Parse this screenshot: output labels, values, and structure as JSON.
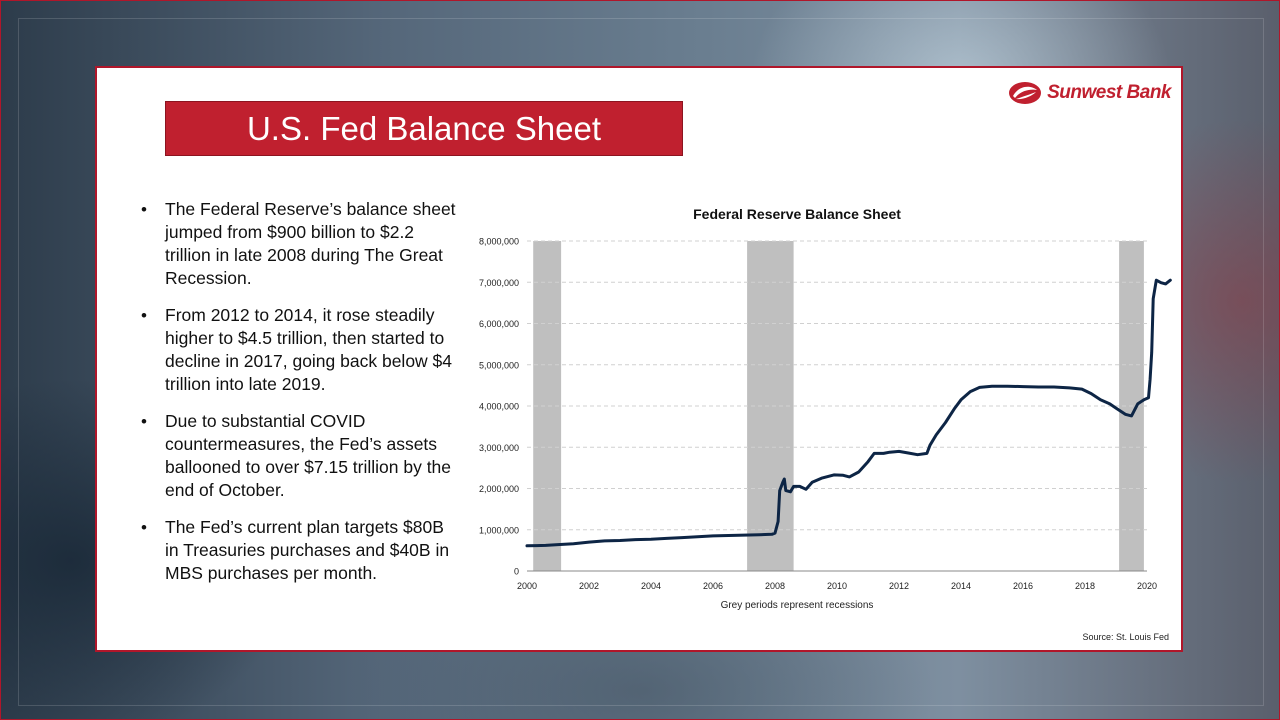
{
  "slide": {
    "title": "U.S. Fed Balance Sheet",
    "logo_text": "Sunwest Bank",
    "bullets": [
      "The Federal Reserve’s  balance sheet jumped from $900 billion to $2.2 trillion in late 2008 during The Great Recession.",
      "From 2012 to 2014, it rose steadily higher to $4.5 trillion, then started to decline in 2017, going back below $4 trillion into late 2019.",
      "Due to substantial COVID countermeasures,  the Fed’s assets ballooned to over $7.15 trillion by the end of October.",
      "The Fed’s current plan targets $80B in Treasuries purchases and $40B in MBS purchases per month."
    ],
    "source": "Source: St. Louis Fed"
  },
  "colors": {
    "accent_red": "#c0202f",
    "line": "#0d2545",
    "recession": "#bfbfbf"
  },
  "chart_data": {
    "type": "line",
    "title": "Federal Reserve Balance Sheet",
    "xlabel": "Grey periods represent recessions",
    "ylabel": "",
    "xlim": [
      2000,
      2020
    ],
    "ylim": [
      0,
      8000000
    ],
    "grid": true,
    "x_ticks": [
      "2000",
      "2002",
      "2004",
      "2006",
      "2008",
      "2010",
      "2012",
      "2014",
      "2016",
      "2018",
      "2020"
    ],
    "y_ticks": [
      "0",
      "1,000,000",
      "2,000,000",
      "3,000,000",
      "4,000,000",
      "5,000,000",
      "6,000,000",
      "7,000,000",
      "8,000,000"
    ],
    "recessions": [
      [
        2000.2,
        2001.1
      ],
      [
        2007.1,
        2008.6
      ],
      [
        2019.1,
        2019.9
      ]
    ],
    "series": [
      {
        "points": [
          [
            2000.0,
            610000
          ],
          [
            2000.3,
            615000
          ],
          [
            2000.6,
            620000
          ],
          [
            2001.0,
            640000
          ],
          [
            2001.5,
            660000
          ],
          [
            2002.0,
            700000
          ],
          [
            2002.5,
            730000
          ],
          [
            2003.0,
            740000
          ],
          [
            2003.5,
            760000
          ],
          [
            2004.0,
            770000
          ],
          [
            2004.5,
            790000
          ],
          [
            2005.0,
            810000
          ],
          [
            2005.5,
            830000
          ],
          [
            2006.0,
            850000
          ],
          [
            2006.5,
            860000
          ],
          [
            2007.0,
            870000
          ],
          [
            2007.5,
            880000
          ],
          [
            2007.9,
            890000
          ],
          [
            2008.0,
            920000
          ],
          [
            2008.1,
            1200000
          ],
          [
            2008.15,
            1950000
          ],
          [
            2008.25,
            2150000
          ],
          [
            2008.3,
            2230000
          ],
          [
            2008.35,
            1950000
          ],
          [
            2008.5,
            1920000
          ],
          [
            2008.6,
            2050000
          ],
          [
            2008.8,
            2050000
          ],
          [
            2009.0,
            1980000
          ],
          [
            2009.2,
            2150000
          ],
          [
            2009.5,
            2250000
          ],
          [
            2009.9,
            2330000
          ],
          [
            2010.2,
            2320000
          ],
          [
            2010.4,
            2280000
          ],
          [
            2010.7,
            2400000
          ],
          [
            2011.0,
            2650000
          ],
          [
            2011.2,
            2850000
          ],
          [
            2011.5,
            2850000
          ],
          [
            2011.7,
            2880000
          ],
          [
            2012.0,
            2900000
          ],
          [
            2012.3,
            2860000
          ],
          [
            2012.6,
            2820000
          ],
          [
            2012.9,
            2850000
          ],
          [
            2013.0,
            3050000
          ],
          [
            2013.2,
            3300000
          ],
          [
            2013.5,
            3600000
          ],
          [
            2013.8,
            3950000
          ],
          [
            2014.0,
            4150000
          ],
          [
            2014.3,
            4350000
          ],
          [
            2014.6,
            4450000
          ],
          [
            2015.0,
            4480000
          ],
          [
            2015.5,
            4480000
          ],
          [
            2016.0,
            4470000
          ],
          [
            2016.5,
            4460000
          ],
          [
            2017.0,
            4460000
          ],
          [
            2017.5,
            4440000
          ],
          [
            2017.9,
            4410000
          ],
          [
            2018.2,
            4300000
          ],
          [
            2018.5,
            4150000
          ],
          [
            2018.8,
            4050000
          ],
          [
            2019.0,
            3950000
          ],
          [
            2019.3,
            3800000
          ],
          [
            2019.5,
            3760000
          ],
          [
            2019.7,
            4050000
          ],
          [
            2019.9,
            4150000
          ],
          [
            2020.05,
            4200000
          ],
          [
            2020.1,
            4650000
          ],
          [
            2020.15,
            5300000
          ],
          [
            2020.2,
            6600000
          ],
          [
            2020.3,
            7050000
          ],
          [
            2020.45,
            6990000
          ],
          [
            2020.6,
            6960000
          ],
          [
            2020.75,
            7050000
          ]
        ]
      }
    ]
  }
}
